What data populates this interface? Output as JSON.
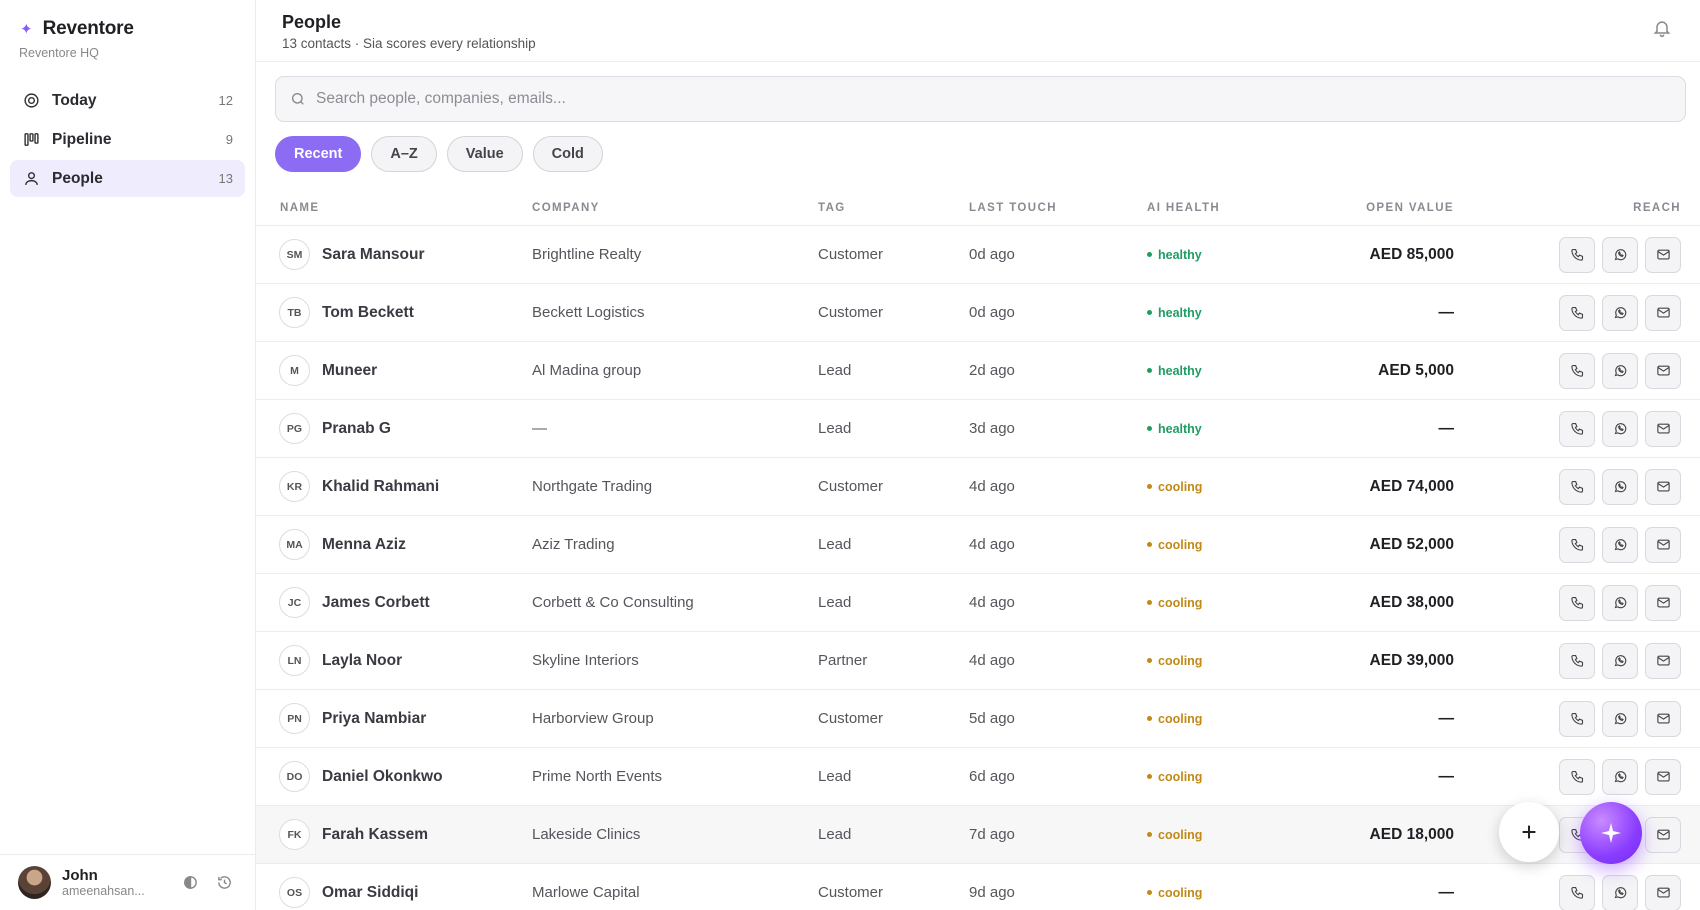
{
  "brand": {
    "name": "Reventore",
    "workspace": "Reventore HQ"
  },
  "nav": [
    {
      "label": "Today",
      "count": "12",
      "icon": "target-icon",
      "active": false
    },
    {
      "label": "Pipeline",
      "count": "9",
      "icon": "kanban-icon",
      "active": false
    },
    {
      "label": "People",
      "count": "13",
      "icon": "user-icon",
      "active": true
    }
  ],
  "user": {
    "name": "John",
    "email": "ameenahsan..."
  },
  "header": {
    "title": "People",
    "subtitle": "13 contacts · Sia scores every relationship"
  },
  "search": {
    "placeholder": "Search people, companies, emails..."
  },
  "filters": [
    {
      "label": "Recent",
      "active": true
    },
    {
      "label": "A–Z",
      "active": false
    },
    {
      "label": "Value",
      "active": false
    },
    {
      "label": "Cold",
      "active": false
    }
  ],
  "columns": {
    "name": "NAME",
    "company": "COMPANY",
    "tag": "TAG",
    "last_touch": "LAST TOUCH",
    "ai_health": "AI HEALTH",
    "open_value": "OPEN VALUE",
    "reach": "REACH"
  },
  "contacts": [
    {
      "initials": "SM",
      "name": "Sara Mansour",
      "company": "Brightline Realty",
      "tag": "Customer",
      "last_touch": "0d ago",
      "health": "healthy",
      "value": "AED 85,000"
    },
    {
      "initials": "TB",
      "name": "Tom Beckett",
      "company": "Beckett Logistics",
      "tag": "Customer",
      "last_touch": "0d ago",
      "health": "healthy",
      "value": "—"
    },
    {
      "initials": "M",
      "name": "Muneer",
      "company": "Al Madina group",
      "tag": "Lead",
      "last_touch": "2d ago",
      "health": "healthy",
      "value": "AED 5,000"
    },
    {
      "initials": "PG",
      "name": "Pranab G",
      "company": "—",
      "tag": "Lead",
      "last_touch": "3d ago",
      "health": "healthy",
      "value": "—"
    },
    {
      "initials": "KR",
      "name": "Khalid Rahmani",
      "company": "Northgate Trading",
      "tag": "Customer",
      "last_touch": "4d ago",
      "health": "cooling",
      "value": "AED 74,000"
    },
    {
      "initials": "MA",
      "name": "Menna Aziz",
      "company": "Aziz Trading",
      "tag": "Lead",
      "last_touch": "4d ago",
      "health": "cooling",
      "value": "AED 52,000"
    },
    {
      "initials": "JC",
      "name": "James Corbett",
      "company": "Corbett & Co Consulting",
      "tag": "Lead",
      "last_touch": "4d ago",
      "health": "cooling",
      "value": "AED 38,000"
    },
    {
      "initials": "LN",
      "name": "Layla Noor",
      "company": "Skyline Interiors",
      "tag": "Partner",
      "last_touch": "4d ago",
      "health": "cooling",
      "value": "AED 39,000"
    },
    {
      "initials": "PN",
      "name": "Priya Nambiar",
      "company": "Harborview Group",
      "tag": "Customer",
      "last_touch": "5d ago",
      "health": "cooling",
      "value": "—"
    },
    {
      "initials": "DO",
      "name": "Daniel Okonkwo",
      "company": "Prime North Events",
      "tag": "Lead",
      "last_touch": "6d ago",
      "health": "cooling",
      "value": "—"
    },
    {
      "initials": "FK",
      "name": "Farah Kassem",
      "company": "Lakeside Clinics",
      "tag": "Lead",
      "last_touch": "7d ago",
      "health": "cooling",
      "value": "AED 18,000",
      "hover": true
    },
    {
      "initials": "OS",
      "name": "Omar Siddiqi",
      "company": "Marlowe Capital",
      "tag": "Customer",
      "last_touch": "9d ago",
      "health": "cooling",
      "value": "—"
    }
  ],
  "colors": {
    "accent": "#8b6cf3",
    "healthy": "#1f9d63",
    "cooling": "#c08a1a"
  }
}
